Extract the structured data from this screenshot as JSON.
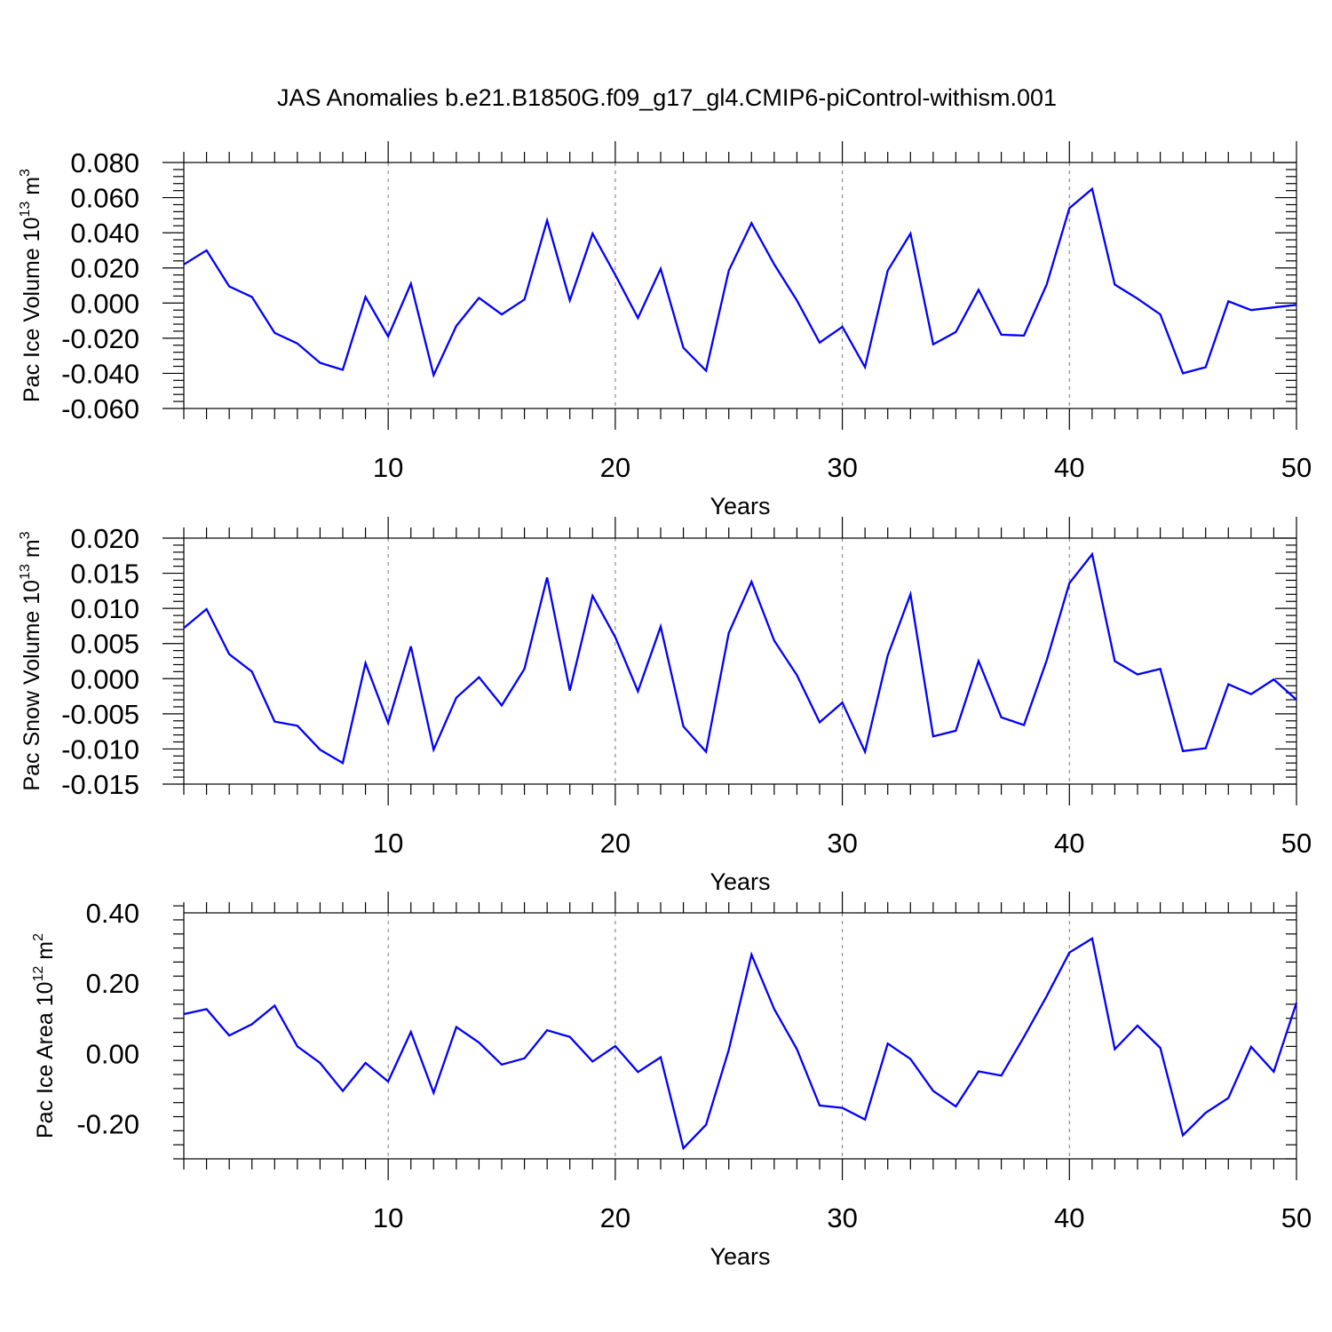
{
  "title": "JAS Anomalies b.e21.B1850G.f09_g17_gl4.CMIP6-piControl-withism.001",
  "colors": {
    "line": "#0000ff",
    "axis": "#000000",
    "grid": "#777777"
  },
  "chart_data": [
    {
      "type": "line",
      "ylabel": {
        "prefix": "Pac Ice Volume 10",
        "exponent": "13",
        "middle": " m",
        "unit_exponent": "3"
      },
      "xlabel": "Years",
      "xlim": [
        1,
        50
      ],
      "ylim": [
        -0.06,
        0.08
      ],
      "yticks": [
        -0.06,
        -0.04,
        -0.02,
        0.0,
        0.02,
        0.04,
        0.06,
        0.08
      ],
      "ytick_labels": [
        "-0.060",
        "-0.040",
        "-0.020",
        "0.000",
        "0.020",
        "0.040",
        "0.060",
        "0.080"
      ],
      "xticks": [
        10,
        20,
        30,
        40,
        50
      ],
      "xtick_labels": [
        "10",
        "20",
        "30",
        "40",
        "50"
      ],
      "grid_x": [
        10,
        20,
        30,
        40
      ],
      "x": [
        1,
        2,
        3,
        4,
        5,
        6,
        7,
        8,
        9,
        10,
        11,
        12,
        13,
        14,
        15,
        16,
        17,
        18,
        19,
        20,
        21,
        22,
        23,
        24,
        25,
        26,
        27,
        28,
        29,
        30,
        31,
        32,
        33,
        34,
        35,
        36,
        37,
        38,
        39,
        40,
        41,
        42,
        43,
        44,
        45,
        46,
        47,
        48,
        49,
        50
      ],
      "values": [
        0.022,
        0.03,
        0.0095,
        0.0035,
        -0.017,
        -0.023,
        -0.034,
        -0.038,
        0.0035,
        -0.019,
        0.011,
        -0.041,
        -0.013,
        0.003,
        -0.0065,
        0.002,
        0.047,
        0.0015,
        0.0395,
        0.016,
        -0.0085,
        0.0195,
        -0.0255,
        -0.0385,
        0.0185,
        0.0455,
        0.022,
        0.0015,
        -0.0225,
        -0.0135,
        -0.0365,
        0.0185,
        0.0395,
        -0.0235,
        -0.0165,
        0.0075,
        -0.018,
        -0.0185,
        0.0105,
        0.054,
        0.065,
        0.0105,
        0.0025,
        -0.0065,
        -0.04,
        -0.0365,
        0.001,
        -0.004,
        -0.0025,
        -0.001
      ]
    },
    {
      "type": "line",
      "ylabel": {
        "prefix": "Pac Snow Volume 10",
        "exponent": "13",
        "middle": " m",
        "unit_exponent": "3"
      },
      "xlabel": "Years",
      "xlim": [
        1,
        50
      ],
      "ylim": [
        -0.015,
        0.02
      ],
      "yticks": [
        -0.015,
        -0.01,
        -0.005,
        0.0,
        0.005,
        0.01,
        0.015,
        0.02
      ],
      "ytick_labels": [
        "-0.015",
        "-0.010",
        "-0.005",
        "0.000",
        "0.005",
        "0.010",
        "0.015",
        "0.020"
      ],
      "xticks": [
        10,
        20,
        30,
        40,
        50
      ],
      "xtick_labels": [
        "10",
        "20",
        "30",
        "40",
        "50"
      ],
      "grid_x": [
        10,
        20,
        30,
        40
      ],
      "x": [
        1,
        2,
        3,
        4,
        5,
        6,
        7,
        8,
        9,
        10,
        11,
        12,
        13,
        14,
        15,
        16,
        17,
        18,
        19,
        20,
        21,
        22,
        23,
        24,
        25,
        26,
        27,
        28,
        29,
        30,
        31,
        32,
        33,
        34,
        35,
        36,
        37,
        38,
        39,
        40,
        41,
        42,
        43,
        44,
        45,
        46,
        47,
        48,
        49,
        50
      ],
      "values": [
        0.0072,
        0.0099,
        0.0035,
        0.001,
        -0.0061,
        -0.0067,
        -0.0101,
        -0.012,
        0.0022,
        -0.0063,
        0.0046,
        -0.0101,
        -0.0027,
        0.0002,
        -0.0038,
        0.0014,
        0.0144,
        -0.0017,
        0.0118,
        0.0059,
        -0.0018,
        0.0074,
        -0.0068,
        -0.0104,
        0.0065,
        0.0138,
        0.0054,
        0.0005,
        -0.0062,
        -0.0034,
        -0.0104,
        0.0033,
        0.012,
        -0.0082,
        -0.0074,
        0.0025,
        -0.0055,
        -0.0066,
        0.0026,
        0.0136,
        0.0177,
        0.0025,
        0.0006,
        0.0014,
        -0.0103,
        -0.0099,
        -0.0008,
        -0.0022,
        -0.0001,
        -0.003
      ]
    },
    {
      "type": "line",
      "ylabel": {
        "prefix": "Pac Ice Area 10",
        "exponent": "12",
        "middle": " m",
        "unit_exponent": "2"
      },
      "xlabel": "Years",
      "xlim": [
        1,
        50
      ],
      "ylim": [
        -0.3,
        0.4
      ],
      "yticks": [
        -0.2,
        0.0,
        0.2,
        0.4
      ],
      "ytick_labels": [
        "-0.20",
        "0.00",
        "0.20",
        "0.40"
      ],
      "xticks": [
        10,
        20,
        30,
        40,
        50
      ],
      "xtick_labels": [
        "10",
        "20",
        "30",
        "40",
        "50"
      ],
      "grid_x": [
        10,
        20,
        30,
        40
      ],
      "x": [
        1,
        2,
        3,
        4,
        5,
        6,
        7,
        8,
        9,
        10,
        11,
        12,
        13,
        14,
        15,
        16,
        17,
        18,
        19,
        20,
        21,
        22,
        23,
        24,
        25,
        26,
        27,
        28,
        29,
        30,
        31,
        32,
        33,
        34,
        35,
        36,
        37,
        38,
        39,
        40,
        41,
        42,
        43,
        44,
        45,
        46,
        47,
        48,
        49,
        50
      ],
      "values": [
        0.112,
        0.126,
        0.051,
        0.083,
        0.136,
        0.02,
        -0.027,
        -0.107,
        -0.027,
        -0.08,
        0.061,
        -0.112,
        0.075,
        0.031,
        -0.032,
        -0.014,
        0.066,
        0.047,
        -0.023,
        0.021,
        -0.053,
        -0.011,
        -0.27,
        -0.203,
        0.01,
        0.281,
        0.126,
        0.012,
        -0.148,
        -0.155,
        -0.188,
        0.028,
        -0.016,
        -0.107,
        -0.151,
        -0.051,
        -0.063,
        0.047,
        0.163,
        0.287,
        0.327,
        0.012,
        0.079,
        0.016,
        -0.233,
        -0.169,
        -0.127,
        0.019,
        -0.052,
        0.144
      ]
    }
  ]
}
